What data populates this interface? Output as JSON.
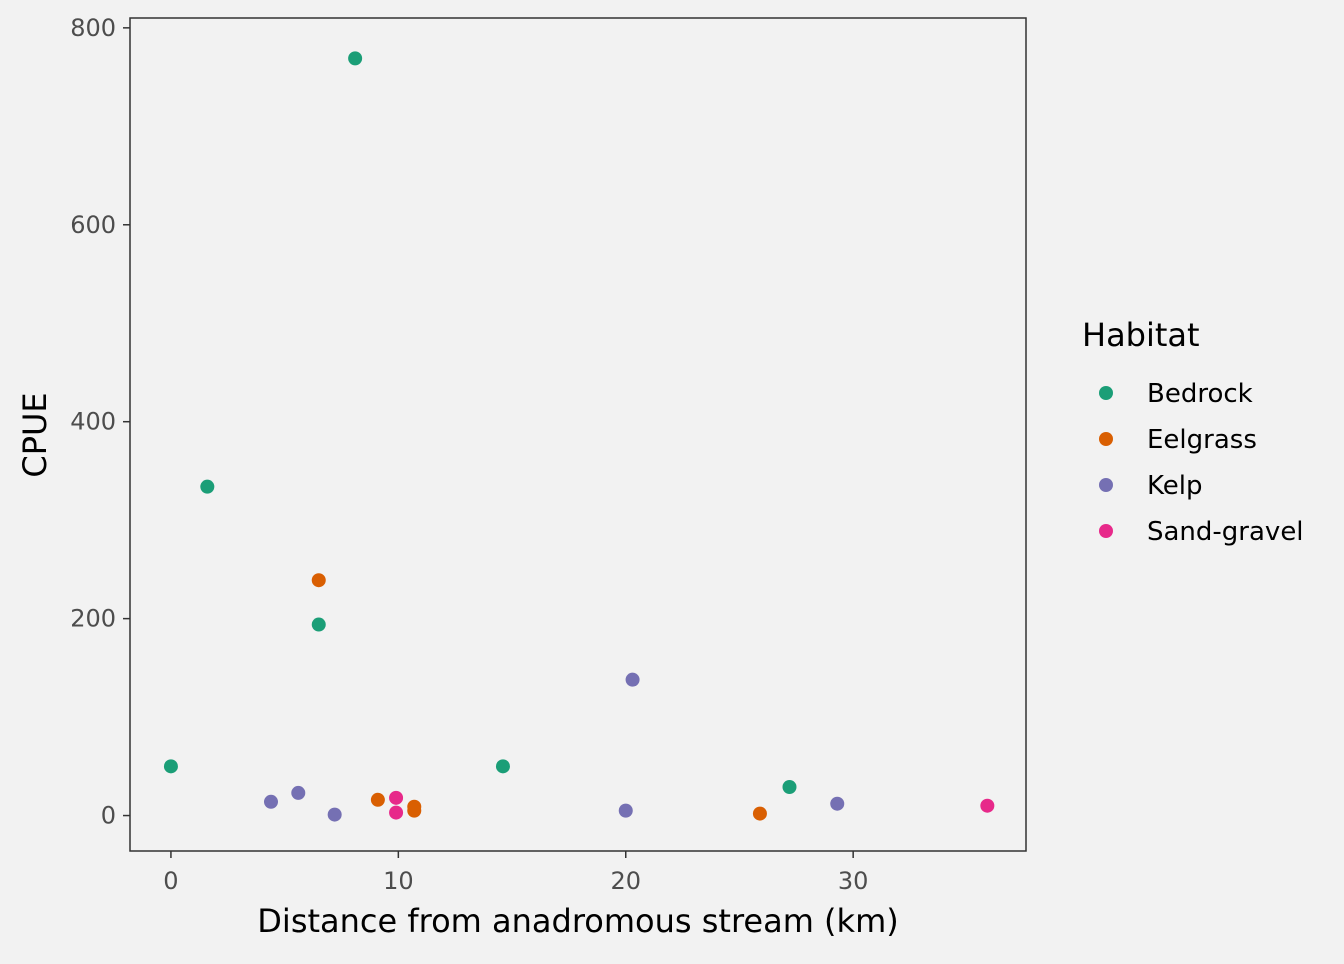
{
  "chart_data": {
    "type": "scatter",
    "title": "",
    "xlabel": "Distance from anadromous stream (km)",
    "ylabel": "CPUE",
    "xlim": [
      -1.8,
      37.6
    ],
    "ylim": [
      -36,
      810
    ],
    "x_ticks": [
      0,
      10,
      20,
      30
    ],
    "y_ticks": [
      0,
      200,
      400,
      600,
      800
    ],
    "grid": false,
    "legend": {
      "title": "Habitat",
      "position": "right"
    },
    "series": [
      {
        "name": "Bedrock",
        "color": "#1b9e77",
        "points": [
          {
            "x": 8.1,
            "y": 769
          },
          {
            "x": 1.6,
            "y": 334
          },
          {
            "x": 6.5,
            "y": 194
          },
          {
            "x": 0.0,
            "y": 50
          },
          {
            "x": 14.6,
            "y": 50
          },
          {
            "x": 27.2,
            "y": 29
          }
        ]
      },
      {
        "name": "Eelgrass",
        "color": "#d95f02",
        "points": [
          {
            "x": 6.5,
            "y": 239
          },
          {
            "x": 9.1,
            "y": 16
          },
          {
            "x": 10.7,
            "y": 9
          },
          {
            "x": 10.7,
            "y": 5
          },
          {
            "x": 25.9,
            "y": 2
          }
        ]
      },
      {
        "name": "Kelp",
        "color": "#7570b3",
        "points": [
          {
            "x": 20.3,
            "y": 138
          },
          {
            "x": 5.6,
            "y": 23
          },
          {
            "x": 4.4,
            "y": 14
          },
          {
            "x": 7.2,
            "y": 1
          },
          {
            "x": 20.0,
            "y": 5
          },
          {
            "x": 29.3,
            "y": 12
          }
        ]
      },
      {
        "name": "Sand-gravel",
        "color": "#e7298a",
        "points": [
          {
            "x": 9.9,
            "y": 18
          },
          {
            "x": 9.9,
            "y": 3
          },
          {
            "x": 35.9,
            "y": 10
          }
        ]
      }
    ]
  }
}
